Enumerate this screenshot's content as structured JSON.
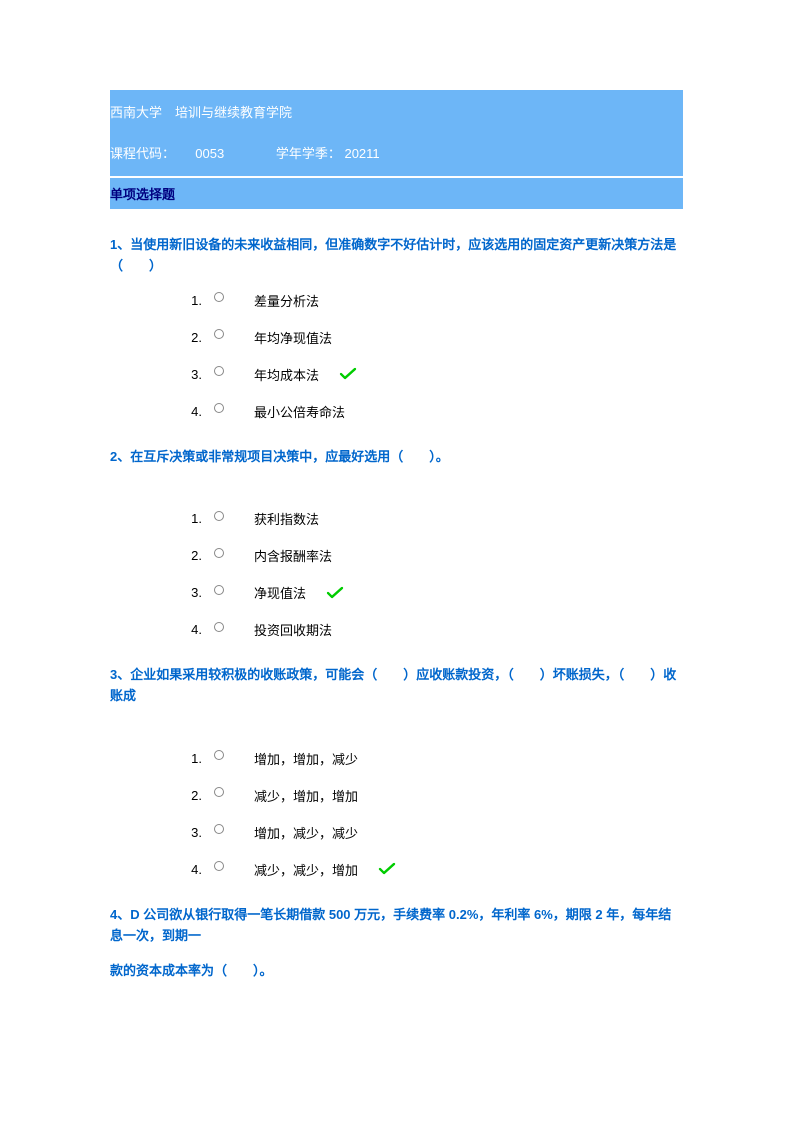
{
  "colors": {
    "header_bg": "#6db6f7",
    "header_text": "#ffffff",
    "section_title": "#000080",
    "question_text": "#0066cc",
    "option_text": "#000000",
    "check_stroke": "#00cc00",
    "check_fill": "#aaffaa",
    "page_bg": "#ffffff"
  },
  "header": {
    "institution": "西南大学　培训与继续教育学院",
    "course_code_label": "课程代码：",
    "course_code_value": "0053",
    "season_label": "学年学季：",
    "season_value": "20211"
  },
  "section_title": "单项选择题",
  "questions": [
    {
      "text": "1、当使用新旧设备的未来收益相同，但准确数字不好估计时，应该选用的固定资产更新决策方法是（　　）",
      "extra_spacer": false,
      "options": [
        {
          "num": "1.",
          "label": "差量分析法",
          "correct": false
        },
        {
          "num": "2.",
          "label": "年均净现值法",
          "correct": false
        },
        {
          "num": "3.",
          "label": "年均成本法",
          "correct": true
        },
        {
          "num": "4.",
          "label": "最小公倍寿命法",
          "correct": false
        }
      ]
    },
    {
      "text": "2、在互斥决策或非常规项目决策中，应最好选用（　　）。",
      "extra_spacer": true,
      "options": [
        {
          "num": "1.",
          "label": "获利指数法",
          "correct": false
        },
        {
          "num": "2.",
          "label": "内含报酬率法",
          "correct": false
        },
        {
          "num": "3.",
          "label": "净现值法",
          "correct": true
        },
        {
          "num": "4.",
          "label": "投资回收期法",
          "correct": false
        }
      ]
    },
    {
      "text": "3、企业如果采用较积极的收账政策，可能会（　　）应收账款投资，（　　）坏账损失，（　　）收账成",
      "extra_spacer": true,
      "options": [
        {
          "num": "1.",
          "label": "增加，增加，减少",
          "correct": false
        },
        {
          "num": "2.",
          "label": "减少，增加，增加",
          "correct": false
        },
        {
          "num": "3.",
          "label": "增加，减少，减少",
          "correct": false
        },
        {
          "num": "4.",
          "label": "减少，减少，增加",
          "correct": true
        }
      ]
    },
    {
      "text": "4、D 公司欲从银行取得一笔长期借款 500 万元，手续费率 0.2%，年利率 6%，期限 2 年，每年结息一次，到期一",
      "text2": "款的资本成本率为（　　）。",
      "extra_spacer": false,
      "options": []
    }
  ]
}
